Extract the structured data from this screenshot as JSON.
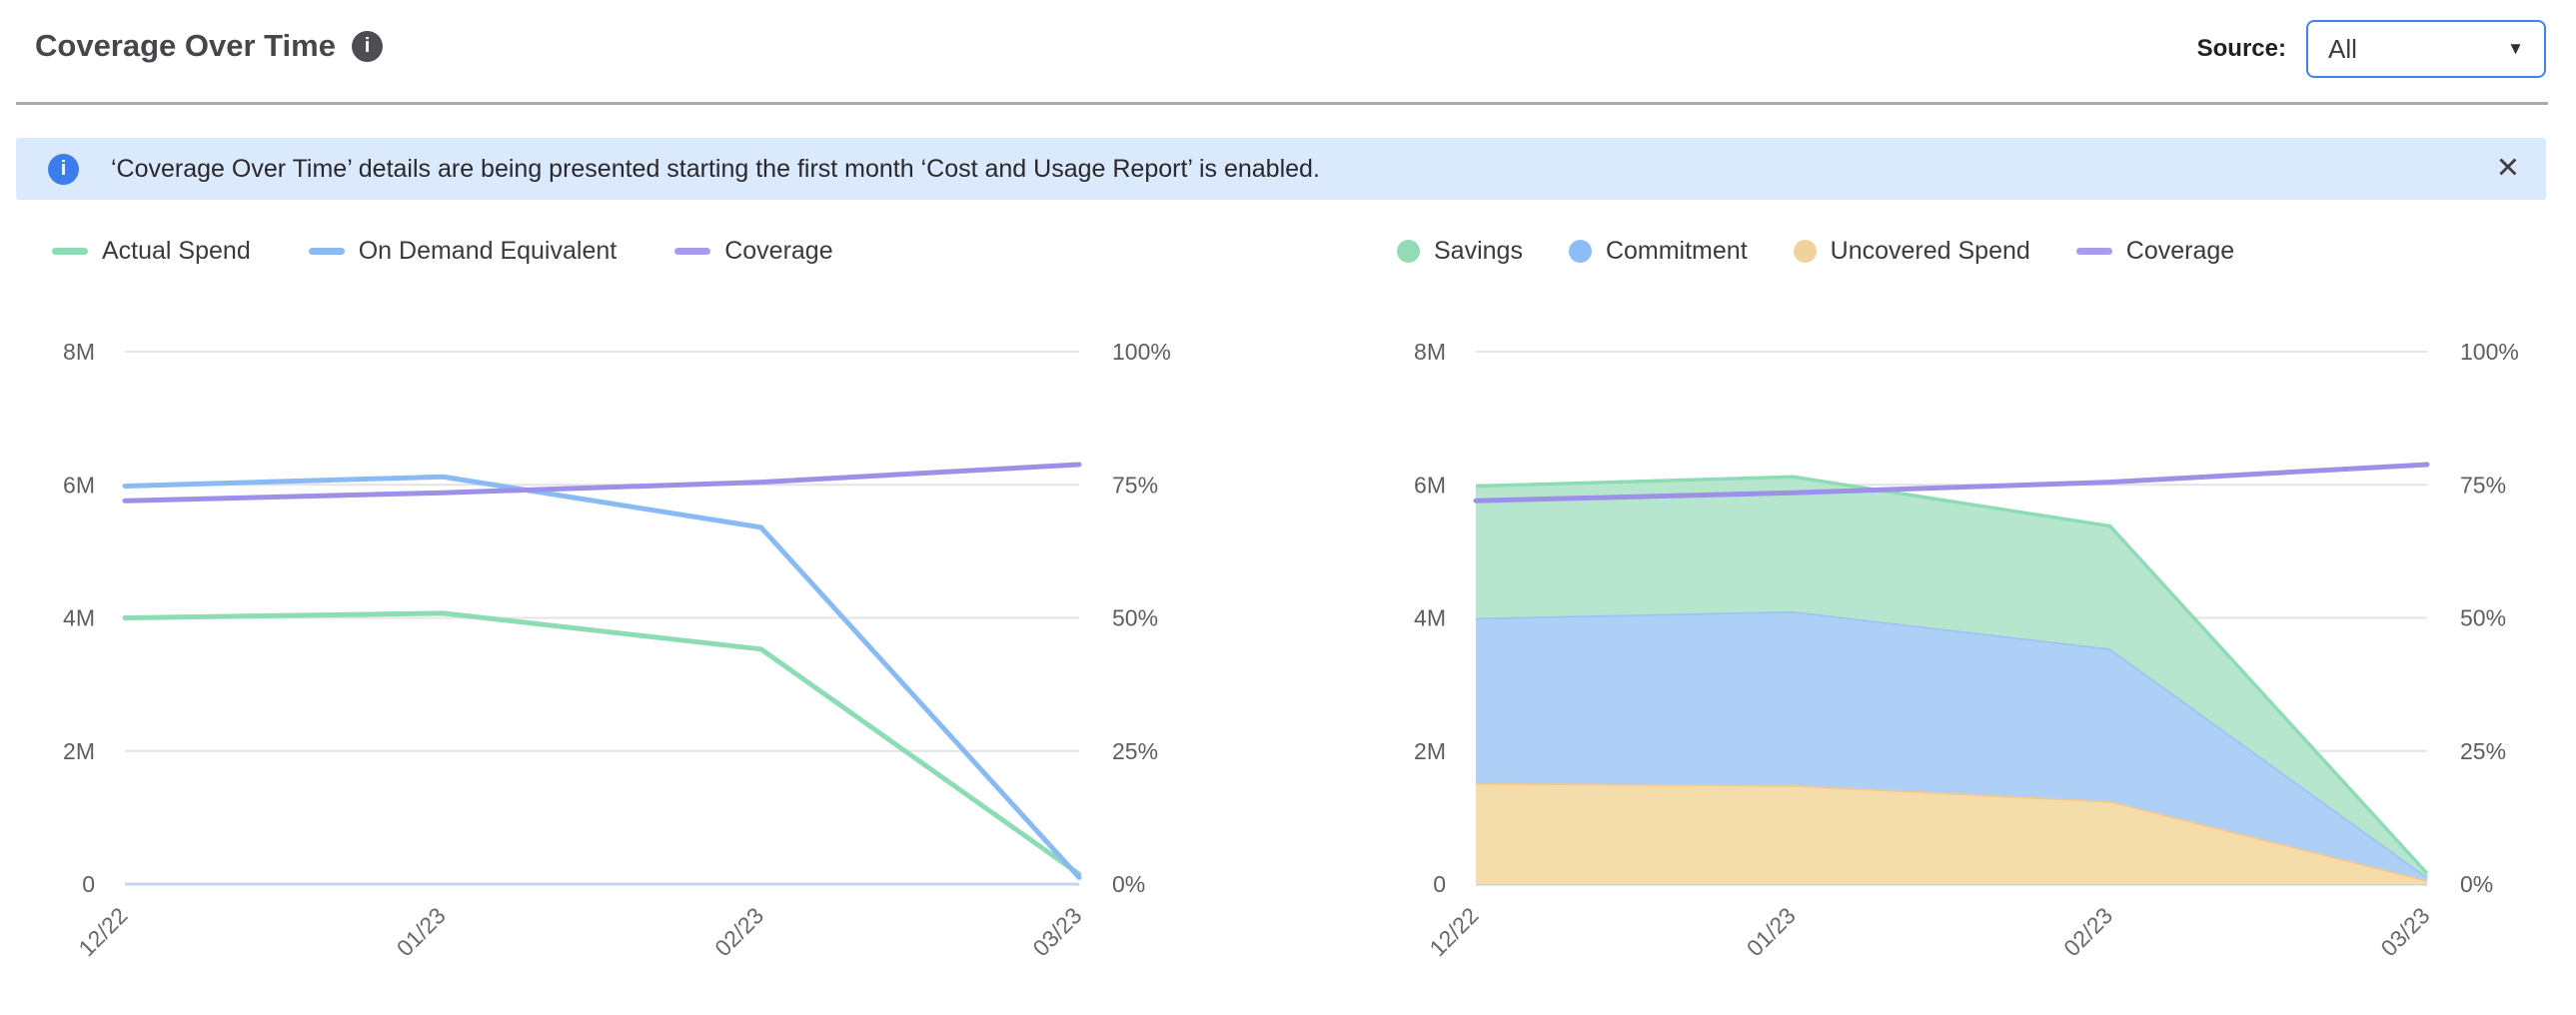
{
  "header": {
    "title": "Coverage Over Time",
    "source_label": "Source:",
    "source_value": "All"
  },
  "icons": {
    "title_info": "i",
    "banner_info": "i",
    "close": "✕",
    "caret": "▼"
  },
  "banner": {
    "text": "‘Coverage Over Time’ details are being presented starting the first month ‘Cost and Usage Report’ is enabled."
  },
  "colors": {
    "accent_blue": "#3e82f2",
    "banner_bg": "#dbe9fc",
    "actual_spend": "#8edcb6",
    "on_demand_equivalent": "#89baf4",
    "coverage": "#9d90e8",
    "savings_fill": "#b7e6ce",
    "commitment_fill": "#aed0f7",
    "uncovered_fill": "#f5dcab"
  },
  "chart_data": [
    {
      "type": "line",
      "categories": [
        "12/22",
        "01/23",
        "02/23",
        "03/23"
      ],
      "left_axis": {
        "ticks": [
          "8M",
          "6M",
          "4M",
          "2M",
          "0"
        ],
        "max": 8,
        "min": 0,
        "unit": "M"
      },
      "right_axis": {
        "ticks": [
          "100%",
          "75%",
          "50%",
          "25%",
          "0%"
        ],
        "max": 100,
        "min": 0,
        "unit": "%"
      },
      "grid": true,
      "legend_position": "top-left",
      "legend": [
        {
          "label": "Actual Spend",
          "marker": "line",
          "color": "#8edcb6"
        },
        {
          "label": "On Demand Equivalent",
          "marker": "line",
          "color": "#89baf4"
        },
        {
          "label": "Coverage",
          "marker": "line",
          "color": "#a89bf0"
        }
      ],
      "series": [
        {
          "name": "Actual Spend",
          "type": "line",
          "axis": "left",
          "color": "#8edcb6",
          "values": [
            4.0,
            4.07,
            3.53,
            0.15
          ]
        },
        {
          "name": "On Demand Equivalent",
          "type": "line",
          "axis": "left",
          "color": "#89baf4",
          "values": [
            5.98,
            6.12,
            5.36,
            0.1
          ]
        },
        {
          "name": "Coverage",
          "type": "line",
          "axis": "right",
          "color": "#9d90e8",
          "values": [
            72,
            73.5,
            75.5,
            78.8
          ]
        }
      ]
    },
    {
      "type": "area-stacked",
      "categories": [
        "12/22",
        "01/23",
        "02/23",
        "03/23"
      ],
      "left_axis": {
        "ticks": [
          "8M",
          "6M",
          "4M",
          "2M",
          "0"
        ],
        "max": 8,
        "min": 0,
        "unit": "M"
      },
      "right_axis": {
        "ticks": [
          "100%",
          "75%",
          "50%",
          "25%",
          "0%"
        ],
        "max": 100,
        "min": 0,
        "unit": "%"
      },
      "grid": true,
      "legend_position": "top-left",
      "legend": [
        {
          "label": "Savings",
          "marker": "dot",
          "color": "#93dab5"
        },
        {
          "label": "Commitment",
          "marker": "dot",
          "color": "#8cbdf7"
        },
        {
          "label": "Uncovered Spend",
          "marker": "dot",
          "color": "#f2d29b"
        },
        {
          "label": "Coverage",
          "marker": "line",
          "color": "#a89bf0"
        }
      ],
      "series": [
        {
          "name": "Uncovered Spend",
          "type": "area",
          "axis": "left",
          "fill": "#f5dcab",
          "stroke": "#edc98e",
          "values": [
            1.52,
            1.49,
            1.25,
            0.06
          ]
        },
        {
          "name": "Commitment",
          "type": "area",
          "axis": "left",
          "fill": "#aed0f7",
          "stroke": "#9cc3f4",
          "values": [
            2.48,
            2.61,
            2.29,
            0.05
          ]
        },
        {
          "name": "Savings",
          "type": "area",
          "axis": "left",
          "fill": "#b7e6ce",
          "stroke": "#8edcb6",
          "values": [
            1.98,
            2.02,
            1.84,
            0.05
          ]
        },
        {
          "name": "Coverage",
          "type": "line",
          "axis": "right",
          "color": "#9d90e8",
          "values": [
            72,
            73.5,
            75.5,
            78.8
          ]
        }
      ]
    }
  ]
}
